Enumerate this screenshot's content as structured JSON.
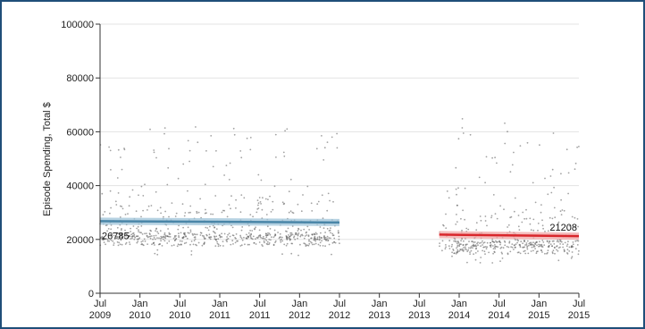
{
  "chart_data": {
    "type": "scatter",
    "title": "",
    "ylabel": "Episode Spending, Total $",
    "xlabel": "",
    "ylim": [
      0,
      100000
    ],
    "xlim": [
      "2009-07",
      "2015-07"
    ],
    "y_ticks": [
      "0",
      "20000",
      "40000",
      "60000",
      "80000",
      "100000"
    ],
    "x_ticks": [
      {
        "date": "2009-07",
        "month": "Jul",
        "year": "2009"
      },
      {
        "date": "2010-01",
        "month": "Jan",
        "year": "2010"
      },
      {
        "date": "2010-07",
        "month": "Jul",
        "year": "2010"
      },
      {
        "date": "2011-01",
        "month": "Jan",
        "year": "2011"
      },
      {
        "date": "2011-07",
        "month": "Jul",
        "year": "2011"
      },
      {
        "date": "2012-01",
        "month": "Jan",
        "year": "2012"
      },
      {
        "date": "2012-07",
        "month": "Jul",
        "year": "2012"
      },
      {
        "date": "2013-01",
        "month": "Jan",
        "year": "2013"
      },
      {
        "date": "2013-07",
        "month": "Jul",
        "year": "2013"
      },
      {
        "date": "2014-01",
        "month": "Jan",
        "year": "2014"
      },
      {
        "date": "2014-07",
        "month": "Jul",
        "year": "2014"
      },
      {
        "date": "2015-01",
        "month": "Jan",
        "year": "2015"
      },
      {
        "date": "2015-07",
        "month": "Jul",
        "year": "2015"
      }
    ],
    "grid": true,
    "scatter_periods": [
      {
        "start": "2009-07",
        "end": "2012-07",
        "typical": 20000,
        "low": 14000,
        "high": 63000
      },
      {
        "start": "2013-10",
        "end": "2015-07",
        "typical": 17000,
        "low": 11000,
        "high": 65000
      }
    ],
    "series": [
      {
        "start": "2009-07",
        "end": "2012-07",
        "values": [
          26785,
          26300
        ],
        "color": "#4a86a8",
        "band_color": "#9ec3d8"
      },
      {
        "start": "2013-10",
        "end": "2015-07",
        "values": [
          21800,
          21208
        ],
        "color": "#d9262b",
        "band_color": "#f0a5a5"
      }
    ],
    "annotations": [
      {
        "text": "26785",
        "date": "2009-07",
        "value": 26785
      },
      {
        "text": "21208",
        "date": "2015-07",
        "value": 21208
      }
    ],
    "point_color": "#555555"
  }
}
